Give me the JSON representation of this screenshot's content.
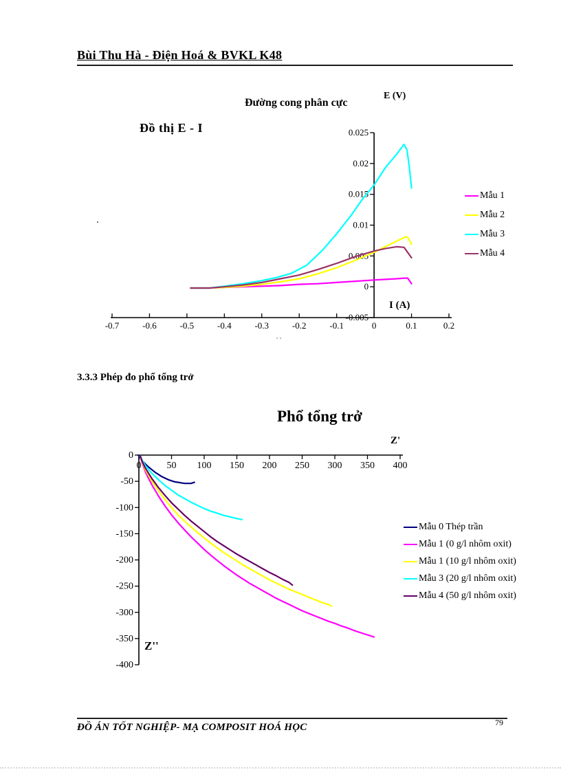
{
  "page": {
    "header": "Bùi Thu Hà - Điện Hoá & BVKL K48",
    "section_heading": "3.3.3 Phép đo phổ tổng trở",
    "footer": "ĐỒ ÁN TỐT NGHIỆP- MẠ COMPOSIT HOÁ HỌC",
    "page_number": "79",
    "stray_dot": "."
  },
  "chart_data": [
    {
      "type": "line",
      "title": "Đường cong phân cực",
      "annotation": "Đồ thị E -  I",
      "ylabel": "E (V)",
      "xlabel": "I (A)",
      "xlim": [
        -0.7,
        0.2
      ],
      "ylim": [
        -0.005,
        0.025
      ],
      "grid": false,
      "legend_position": "right",
      "x_ticks": [
        -0.7,
        -0.6,
        -0.5,
        -0.4,
        -0.3,
        -0.2,
        -0.1,
        0,
        0.1,
        0.2
      ],
      "x_tick_labels": [
        "-0.7",
        "-0.6",
        "-0.5",
        "-0.4",
        "-0.3",
        "-0.2",
        "-0.1",
        "0",
        "0.1",
        "0.2"
      ],
      "y_ticks": [
        -0.005,
        0,
        0.005,
        0.01,
        0.015,
        0.02,
        0.025
      ],
      "y_tick_labels": [
        "-0.005",
        "0",
        "0.005",
        "0.01",
        "0.015",
        "0.02",
        "0.025"
      ],
      "series": [
        {
          "name": "Mẫu 1",
          "color": "#FF00FF",
          "points": [
            [
              -0.49,
              -0.0002
            ],
            [
              -0.44,
              -0.0002
            ],
            [
              -0.4,
              -0.0001
            ],
            [
              -0.35,
              0.0
            ],
            [
              -0.3,
              0.0001
            ],
            [
              -0.25,
              0.0002
            ],
            [
              -0.2,
              0.0004
            ],
            [
              -0.15,
              0.0005
            ],
            [
              -0.1,
              0.0007
            ],
            [
              -0.05,
              0.0009
            ],
            [
              0.0,
              0.0011
            ],
            [
              0.03,
              0.0012
            ],
            [
              0.06,
              0.0013
            ],
            [
              0.08,
              0.0014
            ],
            [
              0.09,
              0.0014
            ],
            [
              0.1,
              0.0005
            ]
          ]
        },
        {
          "name": "Mẫu 2",
          "color": "#FFFF00",
          "points": [
            [
              -0.49,
              -0.0002
            ],
            [
              -0.44,
              -0.0002
            ],
            [
              -0.4,
              -0.0001
            ],
            [
              -0.35,
              0.0001
            ],
            [
              -0.3,
              0.0004
            ],
            [
              -0.25,
              0.0008
            ],
            [
              -0.2,
              0.0013
            ],
            [
              -0.15,
              0.0021
            ],
            [
              -0.1,
              0.0031
            ],
            [
              -0.05,
              0.0043
            ],
            [
              0.0,
              0.0056
            ],
            [
              0.03,
              0.0065
            ],
            [
              0.06,
              0.0074
            ],
            [
              0.085,
              0.0081
            ],
            [
              0.09,
              0.008
            ],
            [
              0.1,
              0.0069
            ]
          ]
        },
        {
          "name": "Mẫu 3",
          "color": "#00FFFF",
          "points": [
            [
              -0.49,
              -0.0002
            ],
            [
              -0.44,
              -0.0002
            ],
            [
              -0.4,
              0.0001
            ],
            [
              -0.35,
              0.0005
            ],
            [
              -0.3,
              0.001
            ],
            [
              -0.26,
              0.0015
            ],
            [
              -0.22,
              0.0022
            ],
            [
              -0.18,
              0.0035
            ],
            [
              -0.14,
              0.0058
            ],
            [
              -0.1,
              0.0086
            ],
            [
              -0.06,
              0.0117
            ],
            [
              -0.03,
              0.0143
            ],
            [
              0.0,
              0.0165
            ],
            [
              0.03,
              0.0193
            ],
            [
              0.06,
              0.0215
            ],
            [
              0.08,
              0.0231
            ],
            [
              0.088,
              0.0222
            ],
            [
              0.094,
              0.0195
            ],
            [
              0.1,
              0.016
            ]
          ]
        },
        {
          "name": "Mẫu 4",
          "color": "#993366",
          "points": [
            [
              -0.49,
              -0.0002
            ],
            [
              -0.44,
              -0.0002
            ],
            [
              -0.4,
              0.0
            ],
            [
              -0.35,
              0.0003
            ],
            [
              -0.3,
              0.0007
            ],
            [
              -0.25,
              0.0013
            ],
            [
              -0.2,
              0.0019
            ],
            [
              -0.15,
              0.0028
            ],
            [
              -0.1,
              0.0038
            ],
            [
              -0.05,
              0.0049
            ],
            [
              0.0,
              0.0058
            ],
            [
              0.03,
              0.0062
            ],
            [
              0.06,
              0.0065
            ],
            [
              0.08,
              0.0064
            ],
            [
              0.1,
              0.0047
            ]
          ]
        }
      ]
    },
    {
      "type": "line",
      "title": "Phổ tổng trở",
      "xlabel": "Z'",
      "ylabel": "Z''",
      "xlim": [
        0,
        400
      ],
      "ylim": [
        -400,
        0
      ],
      "grid": false,
      "legend_position": "right",
      "x_ticks": [
        0,
        50,
        100,
        150,
        200,
        250,
        300,
        350,
        400
      ],
      "x_tick_labels": [
        "0",
        "50",
        "100",
        "150",
        "200",
        "250",
        "300",
        "350",
        "400"
      ],
      "y_ticks": [
        -400,
        -350,
        -300,
        -250,
        -200,
        -150,
        -100,
        -50,
        0
      ],
      "y_tick_labels": [
        "-400",
        "-350",
        "-300",
        "-250",
        "-200",
        "-150",
        "-100",
        "-50",
        "0"
      ],
      "series": [
        {
          "name": "Mẫu 0 Thép trần",
          "color": "#000080",
          "points": [
            [
              0,
              -1
            ],
            [
              3,
              -7
            ],
            [
              6,
              -12
            ],
            [
              10,
              -17
            ],
            [
              15,
              -23
            ],
            [
              20,
              -28
            ],
            [
              25,
              -33
            ],
            [
              30,
              -37
            ],
            [
              35,
              -41
            ],
            [
              40,
              -44
            ],
            [
              45,
              -47
            ],
            [
              50,
              -49
            ],
            [
              55,
              -51
            ],
            [
              60,
              -52
            ],
            [
              65,
              -53
            ],
            [
              70,
              -54
            ],
            [
              75,
              -54
            ],
            [
              80,
              -54
            ],
            [
              85,
              -52
            ]
          ]
        },
        {
          "name": "Mẫu 1 (0 g/l nhôm oxit)",
          "color": "#FF00FF",
          "points": [
            [
              2,
              -2
            ],
            [
              5,
              -15
            ],
            [
              10,
              -32
            ],
            [
              15,
              -45
            ],
            [
              20,
              -57
            ],
            [
              30,
              -78
            ],
            [
              40,
              -97
            ],
            [
              50,
              -114
            ],
            [
              60,
              -129
            ],
            [
              70,
              -143
            ],
            [
              80,
              -156
            ],
            [
              90,
              -168
            ],
            [
              100,
              -180
            ],
            [
              110,
              -191
            ],
            [
              120,
              -201
            ],
            [
              130,
              -211
            ],
            [
              140,
              -220
            ],
            [
              150,
              -229
            ],
            [
              160,
              -237
            ],
            [
              170,
              -245
            ],
            [
              180,
              -252
            ],
            [
              190,
              -259
            ],
            [
              200,
              -266
            ],
            [
              210,
              -273
            ],
            [
              220,
              -279
            ],
            [
              230,
              -285
            ],
            [
              240,
              -291
            ],
            [
              250,
              -297
            ],
            [
              260,
              -302
            ],
            [
              270,
              -307
            ],
            [
              280,
              -312
            ],
            [
              290,
              -317
            ],
            [
              300,
              -321
            ],
            [
              310,
              -326
            ],
            [
              320,
              -330
            ],
            [
              330,
              -335
            ],
            [
              340,
              -339
            ],
            [
              350,
              -343
            ],
            [
              360,
              -347
            ]
          ]
        },
        {
          "name": "Mẫu 1 (10 g/l nhôm oxit)",
          "color": "#FFFF00",
          "points": [
            [
              2,
              -2
            ],
            [
              5,
              -13
            ],
            [
              10,
              -28
            ],
            [
              20,
              -50
            ],
            [
              30,
              -68
            ],
            [
              40,
              -85
            ],
            [
              50,
              -100
            ],
            [
              60,
              -114
            ],
            [
              70,
              -126
            ],
            [
              80,
              -137
            ],
            [
              90,
              -148
            ],
            [
              100,
              -158
            ],
            [
              110,
              -168
            ],
            [
              120,
              -177
            ],
            [
              130,
              -186
            ],
            [
              140,
              -194
            ],
            [
              150,
              -202
            ],
            [
              160,
              -210
            ],
            [
              170,
              -217
            ],
            [
              180,
              -224
            ],
            [
              190,
              -231
            ],
            [
              200,
              -238
            ],
            [
              210,
              -244
            ],
            [
              220,
              -250
            ],
            [
              230,
              -256
            ],
            [
              240,
              -261
            ],
            [
              250,
              -266
            ],
            [
              260,
              -271
            ],
            [
              270,
              -276
            ],
            [
              280,
              -281
            ],
            [
              290,
              -285
            ],
            [
              295,
              -288
            ]
          ]
        },
        {
          "name": "Mẫu 3 (20 g/l nhôm oxit)",
          "color": "#00FFFF",
          "points": [
            [
              2,
              -1
            ],
            [
              5,
              -10
            ],
            [
              10,
              -20
            ],
            [
              20,
              -35
            ],
            [
              30,
              -47
            ],
            [
              40,
              -58
            ],
            [
              50,
              -67
            ],
            [
              60,
              -76
            ],
            [
              70,
              -83
            ],
            [
              80,
              -90
            ],
            [
              90,
              -96
            ],
            [
              100,
              -102
            ],
            [
              110,
              -107
            ],
            [
              120,
              -111
            ],
            [
              130,
              -115
            ],
            [
              140,
              -118
            ],
            [
              150,
              -121
            ],
            [
              158,
              -123
            ]
          ]
        },
        {
          "name": "Mẫu 4 (50 g/l nhôm oxit)",
          "color": "#660066",
          "points": [
            [
              2,
              -1
            ],
            [
              5,
              -12
            ],
            [
              10,
              -25
            ],
            [
              20,
              -45
            ],
            [
              30,
              -62
            ],
            [
              40,
              -77
            ],
            [
              50,
              -91
            ],
            [
              60,
              -103
            ],
            [
              70,
              -115
            ],
            [
              80,
              -126
            ],
            [
              90,
              -136
            ],
            [
              100,
              -146
            ],
            [
              110,
              -156
            ],
            [
              120,
              -165
            ],
            [
              130,
              -173
            ],
            [
              140,
              -181
            ],
            [
              150,
              -189
            ],
            [
              160,
              -196
            ],
            [
              170,
              -203
            ],
            [
              180,
              -210
            ],
            [
              190,
              -217
            ],
            [
              200,
              -224
            ],
            [
              210,
              -230
            ],
            [
              220,
              -237
            ],
            [
              230,
              -243
            ],
            [
              235,
              -248
            ]
          ]
        }
      ]
    }
  ]
}
